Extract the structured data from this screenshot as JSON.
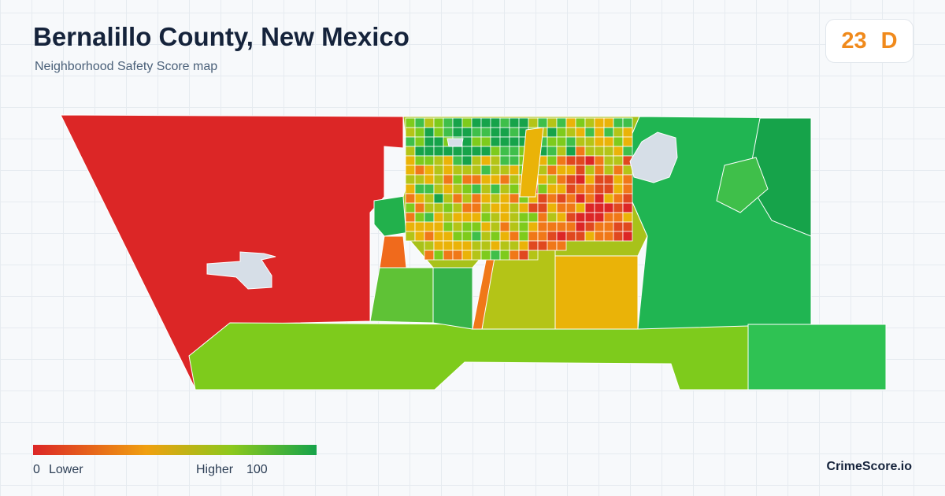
{
  "header": {
    "title": "Bernalillo County, New Mexico",
    "subtitle": "Neighborhood Safety Score map"
  },
  "score": {
    "value": 23,
    "grade": "D"
  },
  "legend": {
    "min": 0,
    "min_label": "Lower",
    "max_label": "Higher",
    "max": 100
  },
  "brand": "CrimeScore.io"
}
